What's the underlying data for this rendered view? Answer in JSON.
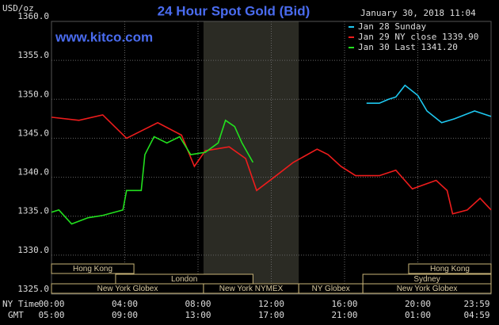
{
  "chart_data": {
    "type": "line",
    "title": "24 Hour Spot Gold (Bid)",
    "y_label": "USD/oz",
    "website": "www.kitco.com",
    "timestamp": "January 30, 2018 11:04",
    "x_row_label": "NY Time",
    "x2_row_label": "GMT",
    "xlim": [
      0,
      24
    ],
    "xticks": [
      {
        "value": 0,
        "label": "00:00"
      },
      {
        "value": 4,
        "label": "04:00"
      },
      {
        "value": 8,
        "label": "08:00"
      },
      {
        "value": 12,
        "label": "12:00"
      },
      {
        "value": 16,
        "label": "16:00"
      },
      {
        "value": 20,
        "label": "20:00"
      },
      {
        "value": 24,
        "label": "23:59"
      }
    ],
    "x2tick_labels": [
      "05:00",
      "09:00",
      "13:00",
      "17:00",
      "21:00",
      "01:00",
      "04:59"
    ],
    "ylim": [
      1325,
      1360
    ],
    "yticks": [
      {
        "value": 1325,
        "label": "1325.0"
      },
      {
        "value": 1330,
        "label": "1330.0"
      },
      {
        "value": 1335,
        "label": "1335.0"
      },
      {
        "value": 1340,
        "label": "1340.0"
      },
      {
        "value": 1345,
        "label": "1345.0"
      },
      {
        "value": 1350,
        "label": "1350.0"
      },
      {
        "value": 1355,
        "label": "1355.0"
      },
      {
        "value": 1360,
        "label": "1360.0"
      }
    ],
    "grid": true,
    "shaded_range": [
      8.3,
      13.5
    ],
    "series": [
      {
        "name": "Jan 28 Sunday",
        "color": "#1ec8f0",
        "x": [
          17.2,
          17.9,
          18.4,
          18.8,
          19.3,
          20.0,
          20.5,
          21.3,
          22.0,
          23.1,
          24.0
        ],
        "values": [
          1349.5,
          1349.5,
          1350.0,
          1350.3,
          1351.8,
          1350.5,
          1348.5,
          1347.0,
          1347.5,
          1348.5,
          1347.8
        ]
      },
      {
        "name": "Jan 29 NY close 1339.90",
        "color": "#ee1c1c",
        "x": [
          0,
          1.5,
          2.8,
          4.1,
          5.8,
          7.1,
          7.8,
          8.4,
          9.7,
          10.6,
          11.2,
          12.1,
          13.2,
          14.5,
          15.1,
          15.8,
          16.6,
          17.9,
          18.8,
          19.7,
          21.0,
          21.6,
          21.9,
          22.7,
          23.4,
          24.0
        ],
        "values": [
          1347.7,
          1347.3,
          1348.0,
          1345.0,
          1347.0,
          1345.4,
          1341.4,
          1343.4,
          1343.9,
          1342.4,
          1338.3,
          1339.9,
          1341.9,
          1343.6,
          1342.9,
          1341.4,
          1340.2,
          1340.2,
          1340.9,
          1338.5,
          1339.6,
          1338.3,
          1335.3,
          1335.8,
          1337.3,
          1335.8
        ]
      },
      {
        "name": "Jan 30 Last 1341.20",
        "color": "#22e01e",
        "x": [
          0,
          0.4,
          1.1,
          2.0,
          2.8,
          3.9,
          4.1,
          4.9,
          5.1,
          5.6,
          6.3,
          7.0,
          7.6,
          8.4,
          9.1,
          9.5,
          10.0,
          10.4,
          11.0
        ],
        "values": [
          1335.5,
          1335.8,
          1334.0,
          1334.8,
          1335.1,
          1335.8,
          1338.3,
          1338.3,
          1342.9,
          1345.2,
          1344.4,
          1345.2,
          1342.9,
          1343.2,
          1344.4,
          1347.3,
          1346.5,
          1344.4,
          1341.9
        ]
      }
    ],
    "sessions": [
      {
        "label": "Hong Kong",
        "start": 0,
        "end": 4.5
      },
      {
        "label": "Hong Kong",
        "start": 19.5,
        "end": 24
      },
      {
        "label": "London",
        "start": 3.5,
        "end": 11
      },
      {
        "label": "Sydney",
        "start": 17,
        "end": 24
      },
      {
        "label": "New York Globex",
        "start": 0,
        "end": 8.3
      },
      {
        "label": "New York NYMEX",
        "start": 8.3,
        "end": 13.5
      },
      {
        "label": "NY Globex",
        "start": 13.5,
        "end": 17
      },
      {
        "label": "New York Globex",
        "start": 17,
        "end": 24
      }
    ]
  }
}
